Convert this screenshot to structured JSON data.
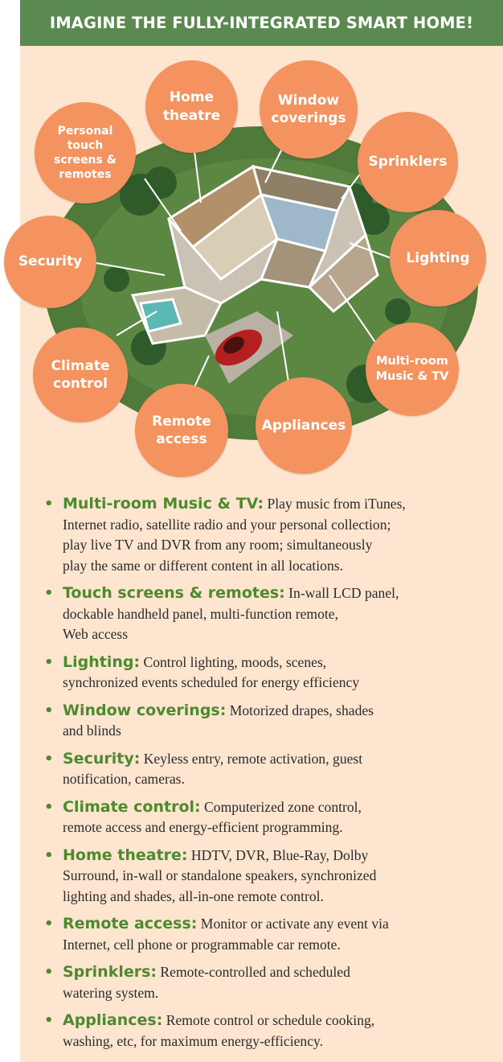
{
  "header": {
    "title": "IMAGINE THE FULLY-INTEGRATED SMART HOME!"
  },
  "bubbles": {
    "home_theatre": "Home\ntheatre",
    "window_coverings": "Window\ncoverings",
    "personal_touch": "Personal\ntouch\nscreens &\nremotes",
    "sprinklers": "Sprinklers",
    "security": "Security",
    "lighting": "Lighting",
    "climate_control": "Climate\ncontrol",
    "multi_room": "Multi-room\nMusic & TV",
    "remote_access": "Remote\naccess",
    "appliances": "Appliances"
  },
  "features": [
    {
      "title": "Multi-room Music & TV:",
      "desc": " Play music from iTunes,\nInternet radio, satellite radio and your personal collection;\nplay live TV and DVR from any room; simultaneously\nplay the same or different content in all locations."
    },
    {
      "title": "Touch screens & remotes:",
      "desc": " In-wall LCD panel,\ndockable handheld panel, multi-function remote,\nWeb access"
    },
    {
      "title": "Lighting:",
      "desc": " Control lighting, moods, scenes,\nsynchronized events scheduled for energy efficiency"
    },
    {
      "title": "Window coverings:",
      "desc": " Motorized drapes, shades\nand blinds"
    },
    {
      "title": "Security:",
      "desc": " Keyless entry, remote activation, guest\nnotification, cameras."
    },
    {
      "title": "Climate control:",
      "desc": " Computerized zone control,\nremote access and energy-efficient programming."
    },
    {
      "title": "Home theatre:",
      "desc": " HDTV, DVR, Blue-Ray, Dolby\nSurround, in-wall or standalone speakers, synchronized\nlighting and shades, all-in-one remote control."
    },
    {
      "title": "Remote access:",
      "desc": " Monitor or activate any event via\nInternet, cell phone or programmable car remote."
    },
    {
      "title": "Sprinklers:",
      "desc": " Remote-controlled and scheduled\nwatering system."
    },
    {
      "title": "Appliances:",
      "desc": " Remote control or schedule cooking,\nwashing, etc, for maximum energy-efficiency."
    }
  ]
}
